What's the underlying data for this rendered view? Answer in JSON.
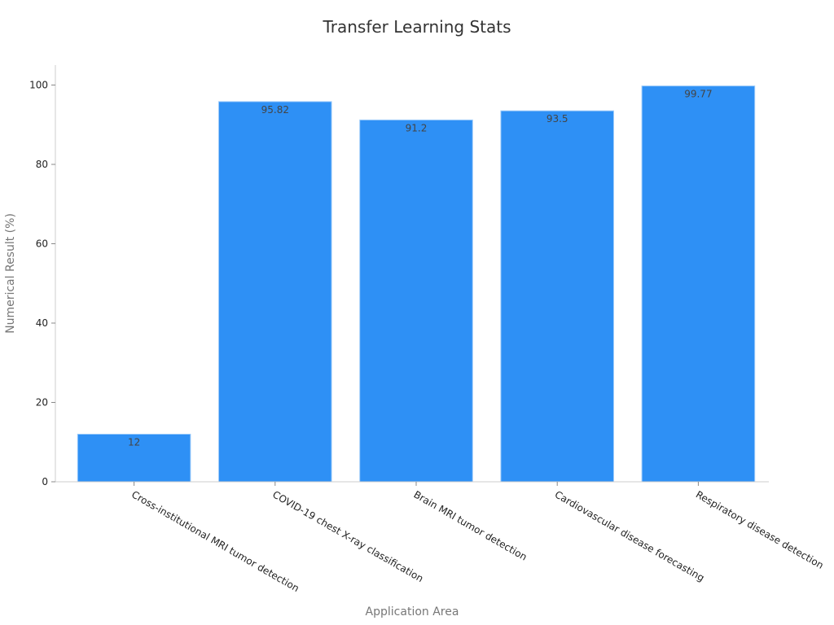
{
  "chart_data": {
    "type": "bar",
    "title": "Transfer Learning Stats",
    "xlabel": "Application Area",
    "ylabel": "Numerical Result (%)",
    "categories": [
      "Cross-institutional MRI tumor detection",
      "COVID-19 chest X-ray classification",
      "Brain MRI tumor detection",
      "Cardiovascular disease forecasting",
      "Respiratory disease detection"
    ],
    "values": [
      12,
      95.82,
      91.2,
      93.5,
      99.77
    ],
    "data_labels": [
      "12",
      "95.82",
      "91.2",
      "93.5",
      "99.77"
    ],
    "y_ticks": [
      0,
      20,
      40,
      60,
      80,
      100
    ],
    "y_tick_labels": [
      "0",
      "20",
      "40",
      "60",
      "80",
      "100"
    ],
    "ylim": [
      0,
      105
    ],
    "grid": false,
    "legend": "none",
    "bar_color": "#2E90F5",
    "bar_edge_color": "#9CCBFA"
  }
}
